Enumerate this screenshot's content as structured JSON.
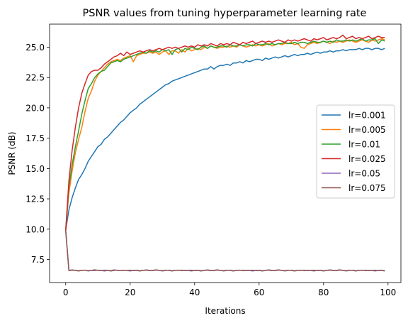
{
  "chart_data": {
    "type": "line",
    "title": "PSNR values from tuning hyperparameter learning rate",
    "xlabel": "Iterations",
    "ylabel": "PSNR (dB)",
    "xlim": [
      -5,
      104
    ],
    "ylim": [
      5.6,
      26.9
    ],
    "xticks": [
      0,
      20,
      40,
      60,
      80,
      100
    ],
    "yticks": [
      7.5,
      10.0,
      12.5,
      15.0,
      17.5,
      20.0,
      22.5,
      25.0
    ],
    "ytick_labels": [
      "7.5",
      "10.0",
      "12.5",
      "15.0",
      "17.5",
      "20.0",
      "22.5",
      "25.0"
    ],
    "grid": false,
    "legend_position": "center-right",
    "series": [
      {
        "name": "lr=0.001",
        "color": "#1f77b4",
        "values": [
          9.9,
          11.6,
          12.6,
          13.4,
          14.1,
          14.5,
          15.0,
          15.6,
          16.0,
          16.4,
          16.8,
          17.0,
          17.4,
          17.6,
          17.9,
          18.2,
          18.5,
          18.8,
          19.0,
          19.3,
          19.6,
          19.8,
          20.0,
          20.3,
          20.5,
          20.7,
          20.9,
          21.1,
          21.3,
          21.5,
          21.7,
          21.9,
          22.0,
          22.2,
          22.3,
          22.4,
          22.5,
          22.6,
          22.7,
          22.8,
          22.9,
          23.0,
          23.1,
          23.2,
          23.2,
          23.4,
          23.2,
          23.4,
          23.5,
          23.5,
          23.6,
          23.5,
          23.7,
          23.7,
          23.8,
          23.7,
          23.9,
          23.8,
          23.9,
          24.0,
          24.0,
          23.9,
          24.1,
          24.0,
          24.1,
          24.2,
          24.1,
          24.2,
          24.3,
          24.2,
          24.3,
          24.4,
          24.3,
          24.4,
          24.4,
          24.5,
          24.4,
          24.5,
          24.6,
          24.5,
          24.6,
          24.6,
          24.7,
          24.6,
          24.7,
          24.7,
          24.8,
          24.7,
          24.8,
          24.8,
          24.8,
          24.9,
          24.8,
          24.9,
          24.9,
          24.8,
          24.9,
          24.9,
          24.8,
          24.9
        ]
      },
      {
        "name": "lr=0.005",
        "color": "#ff7f0e",
        "values": [
          9.9,
          13.0,
          14.8,
          16.3,
          17.4,
          18.4,
          19.7,
          20.8,
          21.4,
          22.2,
          22.7,
          23.0,
          23.3,
          23.6,
          23.8,
          23.9,
          24.0,
          23.9,
          24.1,
          24.2,
          24.3,
          23.8,
          24.3,
          24.4,
          24.5,
          24.5,
          24.6,
          24.5,
          24.6,
          24.4,
          24.6,
          24.7,
          24.4,
          24.7,
          24.7,
          24.5,
          24.8,
          24.6,
          24.9,
          24.7,
          24.8,
          24.9,
          24.8,
          25.0,
          24.9,
          25.1,
          25.0,
          24.9,
          25.0,
          25.0,
          25.1,
          25.0,
          25.1,
          25.0,
          25.2,
          25.1,
          25.0,
          25.1,
          25.2,
          25.1,
          25.2,
          25.1,
          25.2,
          25.3,
          25.1,
          25.2,
          25.3,
          25.2,
          25.3,
          25.3,
          25.4,
          25.2,
          25.3,
          25.0,
          24.9,
          25.2,
          25.3,
          25.4,
          25.3,
          25.4,
          25.5,
          25.4,
          25.3,
          25.5,
          25.4,
          25.5,
          25.4,
          25.5,
          25.6,
          25.5,
          25.4,
          25.5,
          25.6,
          25.5,
          25.4,
          25.6,
          25.5,
          25.6,
          25.7,
          25.6
        ]
      },
      {
        "name": "lr=0.01",
        "color": "#2ca02c",
        "values": [
          9.9,
          13.5,
          15.3,
          16.8,
          18.1,
          19.5,
          20.6,
          21.6,
          22.0,
          22.5,
          22.8,
          23.0,
          23.1,
          23.4,
          23.7,
          23.8,
          23.9,
          23.8,
          24.0,
          24.1,
          24.2,
          24.3,
          24.4,
          24.5,
          24.6,
          24.5,
          24.7,
          24.6,
          24.7,
          24.6,
          24.8,
          24.7,
          24.8,
          24.4,
          24.8,
          24.9,
          24.6,
          24.9,
          24.8,
          25.0,
          24.9,
          24.8,
          25.0,
          25.1,
          24.9,
          25.1,
          25.0,
          25.0,
          25.1,
          25.1,
          25.0,
          25.2,
          25.1,
          25.1,
          25.2,
          25.1,
          25.2,
          25.2,
          25.1,
          25.3,
          25.2,
          25.2,
          25.3,
          25.2,
          25.3,
          25.2,
          25.3,
          25.3,
          25.4,
          25.3,
          25.3,
          25.4,
          25.3,
          25.4,
          25.4,
          25.3,
          25.4,
          25.5,
          25.4,
          25.4,
          25.5,
          25.4,
          25.5,
          25.4,
          25.6,
          25.5,
          25.5,
          25.6,
          25.5,
          25.6,
          25.5,
          25.6,
          25.7,
          25.5,
          25.6,
          25.6,
          25.7,
          25.3,
          25.6,
          25.5
        ]
      },
      {
        "name": "lr=0.025",
        "color": "#d62728",
        "values": [
          9.9,
          14.0,
          16.5,
          18.4,
          20.0,
          21.2,
          22.0,
          22.7,
          23.0,
          23.1,
          23.1,
          23.3,
          23.6,
          23.8,
          24.0,
          24.2,
          24.3,
          24.5,
          24.3,
          24.6,
          24.4,
          24.5,
          24.6,
          24.7,
          24.6,
          24.7,
          24.8,
          24.7,
          24.8,
          24.9,
          24.8,
          24.9,
          25.0,
          24.9,
          25.0,
          24.9,
          25.0,
          25.1,
          25.0,
          25.1,
          25.0,
          25.2,
          25.1,
          25.2,
          25.1,
          25.3,
          25.2,
          25.1,
          25.3,
          25.2,
          25.3,
          25.2,
          25.4,
          25.3,
          25.2,
          25.4,
          25.3,
          25.4,
          25.5,
          25.3,
          25.4,
          25.5,
          25.4,
          25.5,
          25.4,
          25.5,
          25.6,
          25.5,
          25.4,
          25.6,
          25.5,
          25.6,
          25.5,
          25.6,
          25.7,
          25.6,
          25.5,
          25.7,
          25.6,
          25.7,
          25.8,
          25.6,
          25.7,
          25.8,
          25.7,
          25.8,
          26.0,
          25.7,
          25.8,
          25.9,
          25.7,
          25.8,
          25.7,
          25.8,
          25.9,
          25.7,
          25.8,
          25.9,
          25.8,
          25.8
        ]
      },
      {
        "name": "lr=0.05",
        "color": "#9467bd",
        "values": [
          9.9,
          6.6,
          6.65,
          6.6,
          6.58,
          6.6,
          6.62,
          6.55,
          6.6,
          6.58,
          6.62,
          6.6,
          6.55,
          6.6,
          6.58,
          6.65,
          6.6,
          6.58,
          6.62,
          6.6,
          6.55,
          6.6,
          6.62,
          6.58,
          6.6,
          6.65,
          6.6,
          6.58,
          6.62,
          6.6,
          6.55,
          6.6,
          6.62,
          6.58,
          6.6,
          6.6,
          6.62,
          6.58,
          6.6,
          6.55,
          6.6,
          6.62,
          6.58,
          6.6,
          6.65,
          6.6,
          6.58,
          6.62,
          6.6,
          6.55,
          6.6,
          6.62,
          6.58,
          6.6,
          6.6,
          6.62,
          6.58,
          6.6,
          6.55,
          6.6,
          6.62,
          6.58,
          6.6,
          6.65,
          6.6,
          6.58,
          6.62,
          6.6,
          6.55,
          6.6,
          6.62,
          6.58,
          6.6,
          6.6,
          6.62,
          6.58,
          6.6,
          6.55,
          6.6,
          6.62,
          6.58,
          6.6,
          6.65,
          6.6,
          6.58,
          6.62,
          6.6,
          6.55,
          6.6,
          6.62,
          6.58,
          6.6,
          6.6,
          6.62,
          6.58,
          6.6,
          6.55,
          6.6,
          6.62,
          6.58
        ]
      },
      {
        "name": "lr=0.075",
        "color": "#8c564b",
        "values": [
          9.9,
          6.58,
          6.62,
          6.6,
          6.55,
          6.6,
          6.62,
          6.58,
          6.6,
          6.65,
          6.6,
          6.58,
          6.62,
          6.6,
          6.55,
          6.6,
          6.62,
          6.58,
          6.6,
          6.6,
          6.62,
          6.58,
          6.6,
          6.55,
          6.6,
          6.62,
          6.58,
          6.6,
          6.65,
          6.6,
          6.58,
          6.62,
          6.6,
          6.55,
          6.6,
          6.62,
          6.58,
          6.6,
          6.6,
          6.62,
          6.58,
          6.6,
          6.55,
          6.6,
          6.62,
          6.58,
          6.6,
          6.65,
          6.6,
          6.58,
          6.62,
          6.6,
          6.55,
          6.6,
          6.62,
          6.58,
          6.6,
          6.6,
          6.62,
          6.58,
          6.6,
          6.55,
          6.6,
          6.62,
          6.58,
          6.6,
          6.65,
          6.6,
          6.58,
          6.62,
          6.6,
          6.55,
          6.6,
          6.62,
          6.58,
          6.6,
          6.6,
          6.62,
          6.58,
          6.6,
          6.55,
          6.6,
          6.62,
          6.58,
          6.6,
          6.65,
          6.6,
          6.58,
          6.62,
          6.6,
          6.55,
          6.6,
          6.62,
          6.58,
          6.6,
          6.6,
          6.62,
          6.58,
          6.6,
          6.55
        ]
      }
    ]
  }
}
